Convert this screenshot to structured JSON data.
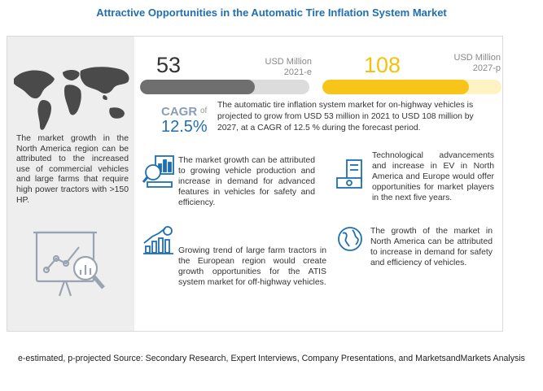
{
  "title": "Attractive Opportunities in the Automatic Tire Inflation System  Market",
  "left_panel": {
    "text": "The market growth in the North America region can be attributed to the increased use of commercial vehicles and large farms that require high power tractors with >150 HP."
  },
  "stats": {
    "value_2021": "53",
    "unit_2021": "USD Million",
    "year_2021": "2021-e",
    "value_2027": "108",
    "unit_2027": "USD Million",
    "year_2027": "2027-p",
    "fill_2021_fraction": 0.68,
    "fill_2027_fraction": 0.82
  },
  "cagr": {
    "label": "CAGR",
    "of": "of",
    "value": "12.5%",
    "text": "The automatic tire inflation system market for on-highway vehicles is projected to grow from USD 53 million in 2021 to USD 108 million by 2027, at a CAGR of 12.5 % during the forecast period."
  },
  "blocks": {
    "b1": "The market growth can be attributed to growing vehicle production and increase in demand for advanced features in vehicles for safety and efficiency.",
    "b2": "Technological advancements and increase in EV in North America and Europe would offer opportunities for market players in the next five years.",
    "b3": "Growing trend of large farm tractors in the European region would create growth opportunities for the ATIS system market for off-highway vehicles.",
    "b4": "The growth of the market in North America can be attributed to increase in demand for safety and efficiency of vehicles."
  },
  "icons": {
    "map": "world-map-icon",
    "analytics": "analytics-magnifier-icon",
    "production": "production-chart-icon",
    "ev": "ev-money-icon",
    "growth": "growth-bar-chart-icon",
    "globe": "globe-icon"
  },
  "colors": {
    "title": "#1f6fb2",
    "bar_2021": "#6f6f6f",
    "bar_2027": "#f7c51a",
    "cagr": "#1f6fb2"
  },
  "footer": "e-estimated, p-projected Source: Secondary Research, Expert Interviews, Company Presentations, and MarketsandMarkets Analysis"
}
